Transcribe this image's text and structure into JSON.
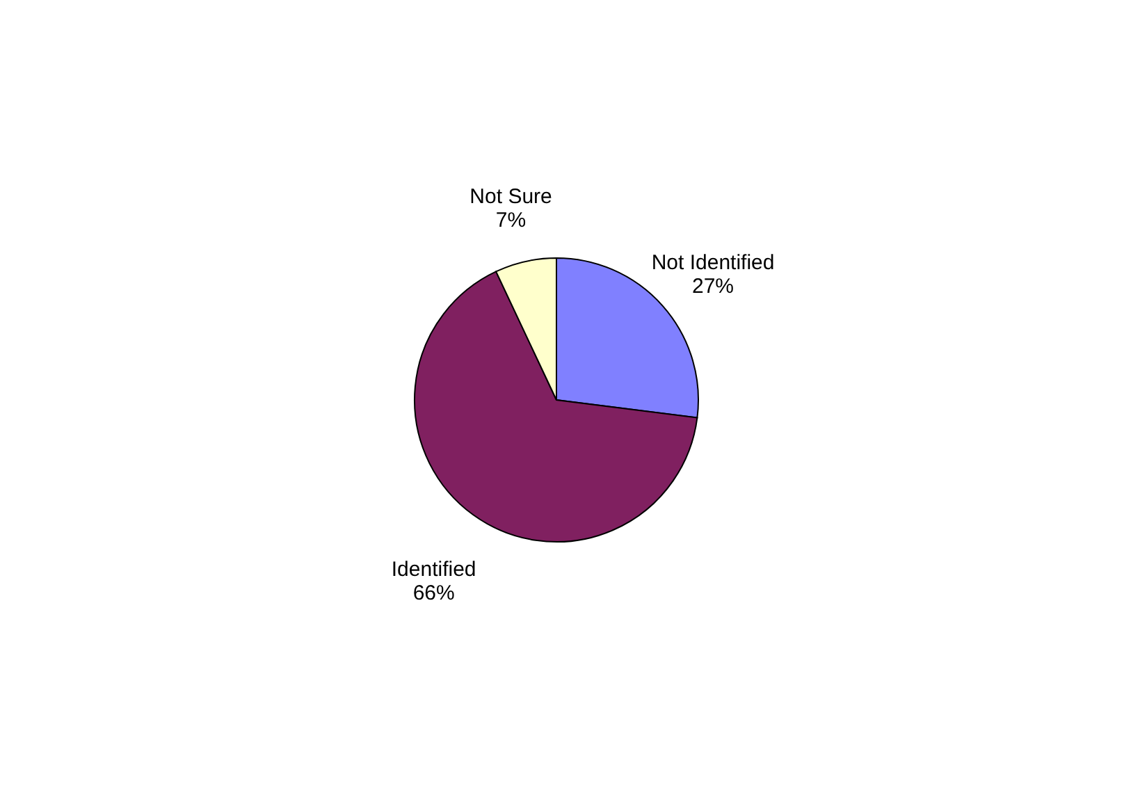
{
  "chart_data": {
    "type": "pie",
    "categories": [
      "Not Identified",
      "Identified",
      "Not Sure"
    ],
    "values": [
      27,
      66,
      7
    ],
    "colors": [
      "#8080ff",
      "#802060",
      "#ffffcc"
    ],
    "value_labels": [
      "27%",
      "66%",
      "7%"
    ],
    "legend": false
  }
}
